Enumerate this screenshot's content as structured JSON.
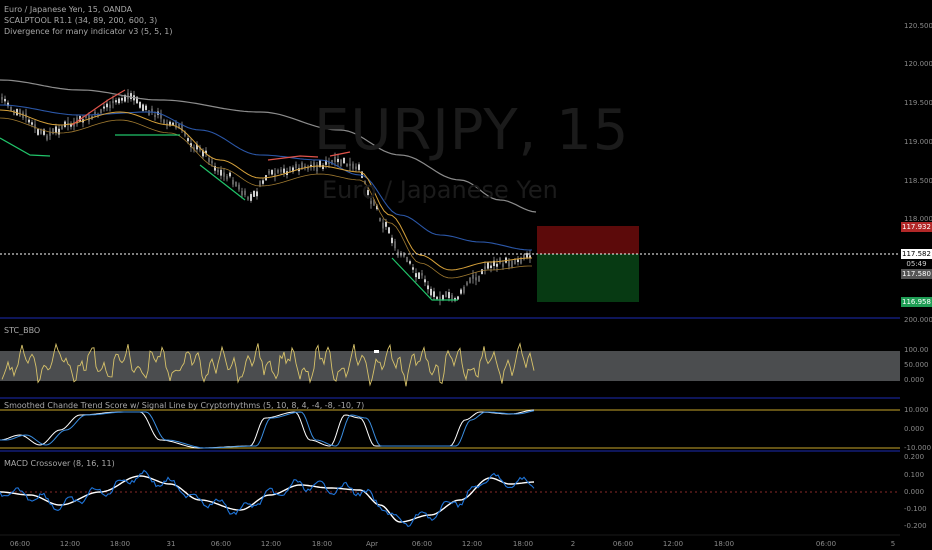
{
  "header": {
    "series_title": "Euro / Japanese Yen, 15, OANDA",
    "indicator_1": "SCALPTOOL R1.1 (34, 89, 200, 600, 3)",
    "indicator_2": "Divergence for many indicator v3 (5, 5, 1)"
  },
  "watermark": {
    "symbol": "EURJPY, 15",
    "name": "Euro / Japanese Yen"
  },
  "price_axis": {
    "ticks": [
      "120.500",
      "120.000",
      "119.500",
      "119.000",
      "118.500",
      "118.000"
    ],
    "tags": [
      {
        "label": "117.932",
        "color": "#b22828"
      },
      {
        "label": "117.582",
        "color": "#ffffff",
        "text_color": "#000000"
      },
      {
        "label": "05:49",
        "color": "#000000",
        "text_color": "#cfcfcf"
      },
      {
        "label": "117.580",
        "color": "#555555"
      },
      {
        "label": "116.958",
        "color": "#1f9d55"
      }
    ]
  },
  "stc_pane": {
    "title": "STC_BBO",
    "ticks": [
      "200.000",
      "100.00",
      "50.000",
      "0.000"
    ]
  },
  "trend_pane": {
    "title": "Smoothed Chande Trend Score w/ Signal Line by Cryptorhythms (5, 10, 8, 4, -4, -8, -10, 7)",
    "ticks": [
      "10.000",
      "0.000",
      "-10.000"
    ]
  },
  "macd_pane": {
    "title": "MACD Crossover (8, 16, 11)",
    "ticks": [
      "0.200",
      "0.100",
      "0.000",
      "-0.100",
      "-0.200"
    ]
  },
  "time_axis": {
    "labels": [
      "06:00",
      "12:00",
      "18:00",
      "31",
      "06:00",
      "12:00",
      "18:00",
      "Apr",
      "06:00",
      "12:00",
      "18:00",
      "2",
      "06:00",
      "12:00",
      "18:00",
      "06:00",
      "5"
    ]
  },
  "colors": {
    "background": "#000000",
    "pane_border": "#1c2bb5",
    "stc_band": "#4b4d4f",
    "stc_line": "#d8c36a",
    "trend_line_white": "#ffffff",
    "trend_line_blue": "#3a8de0",
    "macd_white": "#ffffff",
    "macd_blue": "#1e74d9",
    "ema_gray": "#8c8c8c",
    "ema_blue": "#2b57a8",
    "ema_orange": "#d6a13a",
    "div_red": "#e0534a",
    "div_green": "#21c46a",
    "stop_box": "#5c0a0a",
    "target_box": "#073a13",
    "yellow_limit": "#c8a62a"
  }
}
